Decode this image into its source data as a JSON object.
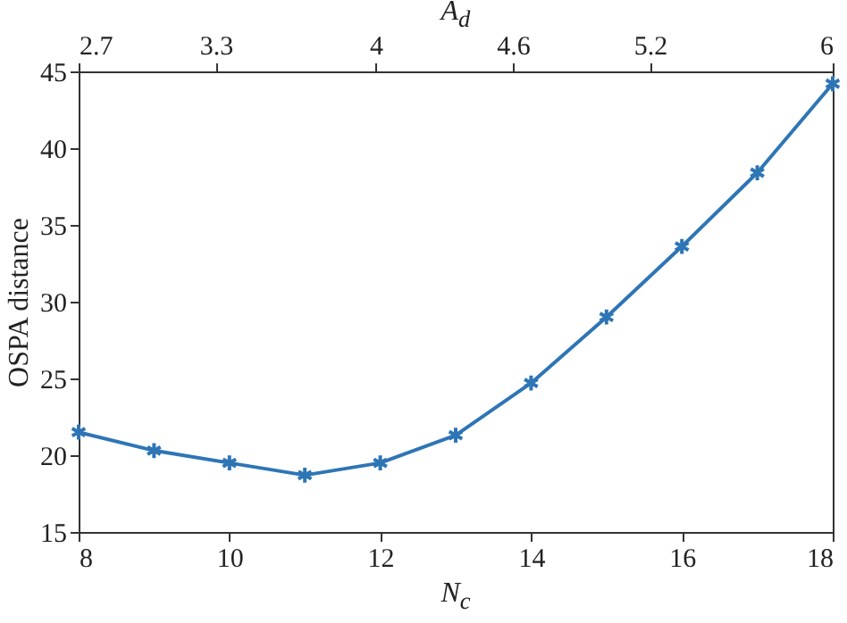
{
  "chart_data": {
    "type": "line",
    "xlabel": "N$_{c}$",
    "x2label": "A$_{d}$",
    "ylabel": "OSPA distance",
    "x": [
      8,
      9,
      10,
      11,
      12,
      13,
      14,
      15,
      16,
      17,
      18
    ],
    "series": [
      {
        "color": "#2e75b6",
        "values": [
          21.5,
          20.3,
          19.5,
          18.7,
          19.5,
          21.3,
          24.7,
          29.0,
          33.6,
          38.4,
          44.2
        ]
      }
    ],
    "xlim": [
      8,
      18
    ],
    "xticks": [
      8,
      10,
      12,
      14,
      16,
      18
    ],
    "x2lim": [
      2.7,
      6
    ],
    "x2ticks": [
      2.7,
      3.3,
      4,
      4.6,
      5.2,
      6
    ],
    "ylim": [
      15,
      45
    ],
    "yticks": [
      15,
      20,
      25,
      30,
      35,
      40,
      45
    ],
    "grid": false,
    "marker": "cross",
    "line_style": "solid"
  }
}
